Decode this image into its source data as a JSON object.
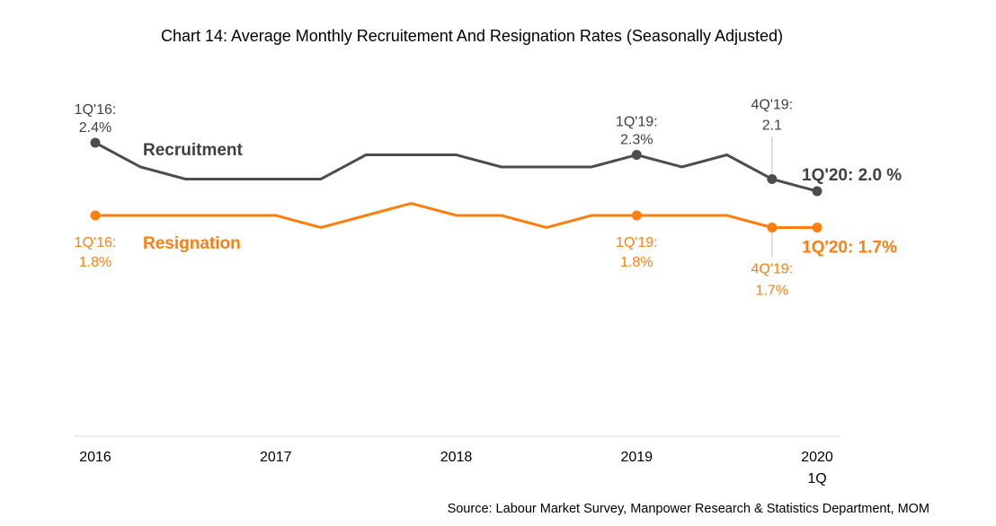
{
  "chart_data": {
    "type": "line",
    "title": "Chart 14: Average Monthly Recruitement And Resignation Rates (Seasonally Adjusted)",
    "xlabel": "",
    "ylabel": "",
    "ylim": [
      1.0,
      2.6
    ],
    "grid": false,
    "x": [
      "1Q16",
      "2Q16",
      "3Q16",
      "4Q16",
      "1Q17",
      "2Q17",
      "3Q17",
      "4Q17",
      "1Q18",
      "2Q18",
      "3Q18",
      "4Q18",
      "1Q19",
      "2Q19",
      "3Q19",
      "4Q19",
      "1Q20"
    ],
    "x_tick_labels": [
      {
        "index": 0,
        "label": "2016",
        "sub": ""
      },
      {
        "index": 4,
        "label": "2017",
        "sub": ""
      },
      {
        "index": 8,
        "label": "2018",
        "sub": ""
      },
      {
        "index": 12,
        "label": "2019",
        "sub": ""
      },
      {
        "index": 16,
        "label": "2020",
        "sub": "1Q"
      }
    ],
    "series": [
      {
        "name": "Recruitment",
        "color": "#4d4d4d",
        "values": [
          2.4,
          2.2,
          2.1,
          2.1,
          2.1,
          2.1,
          2.3,
          2.3,
          2.3,
          2.2,
          2.2,
          2.2,
          2.3,
          2.2,
          2.3,
          2.1,
          2.0
        ],
        "markers": [
          0,
          12,
          15,
          16
        ],
        "annotations": [
          {
            "index": 0,
            "line1": "1Q'16:",
            "line2": "2.4%",
            "position": "above"
          },
          {
            "index": 12,
            "line1": "1Q'19:",
            "line2": "2.3%",
            "position": "above"
          },
          {
            "index": 15,
            "line1": "4Q'19:",
            "line2": "2.1",
            "position": "above-leader"
          },
          {
            "index": 16,
            "text": "1Q'20: 2.0 %",
            "position": "end"
          }
        ]
      },
      {
        "name": "Resignation",
        "color": "#ff7f0e",
        "values": [
          1.8,
          1.8,
          1.8,
          1.8,
          1.8,
          1.7,
          1.8,
          1.9,
          1.8,
          1.8,
          1.7,
          1.8,
          1.8,
          1.8,
          1.8,
          1.7,
          1.7
        ],
        "markers": [
          0,
          12,
          15,
          16
        ],
        "annotations": [
          {
            "index": 0,
            "line1": "1Q'16:",
            "line2": "1.8%",
            "position": "below"
          },
          {
            "index": 12,
            "line1": "1Q'19:",
            "line2": "1.8%",
            "position": "below"
          },
          {
            "index": 15,
            "line1": "4Q'19:",
            "line2": "1.7%",
            "position": "below-leader"
          },
          {
            "index": 16,
            "text": "1Q'20: 1.7%",
            "position": "end"
          }
        ]
      }
    ],
    "legend": "inline",
    "source": "Source: Labour Market Survey, Manpower Research & Statistics Department, MOM"
  }
}
